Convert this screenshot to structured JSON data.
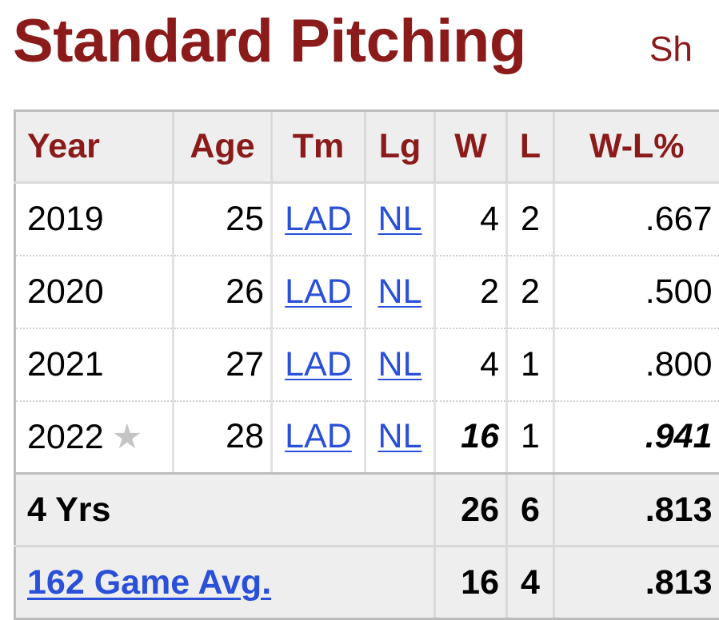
{
  "section": {
    "title": "Standard Pitching",
    "share_label": "Sh"
  },
  "table": {
    "headers": [
      "Year",
      "Age",
      "Tm",
      "Lg",
      "W",
      "L",
      "W-L%"
    ],
    "rows": [
      {
        "year": "2019",
        "age": "25",
        "team": "LAD",
        "league": "NL",
        "w": "4",
        "l": "2",
        "wl_pct": ".667",
        "star": ""
      },
      {
        "year": "2020",
        "age": "26",
        "team": "LAD",
        "league": "NL",
        "w": "2",
        "l": "2",
        "wl_pct": ".500",
        "star": ""
      },
      {
        "year": "2021",
        "age": "27",
        "team": "LAD",
        "league": "NL",
        "w": "4",
        "l": "1",
        "wl_pct": ".800",
        "star": ""
      },
      {
        "year": "2022",
        "age": "28",
        "team": "LAD",
        "league": "NL",
        "w": "16",
        "l": "1",
        "wl_pct": ".941",
        "star": "★"
      }
    ],
    "totals": {
      "label": "4 Yrs",
      "w": "26",
      "l": "6",
      "wl_pct": ".813"
    },
    "avg": {
      "label": "162 Game Avg.",
      "w": "16",
      "l": "4",
      "wl_pct": ".813"
    }
  },
  "colors": {
    "title": "#8b1a1a",
    "header_text": "#8b1a1a",
    "link": "#2a4fd8",
    "header_bg": "#eeeeee",
    "star": "#c4c4c4"
  }
}
